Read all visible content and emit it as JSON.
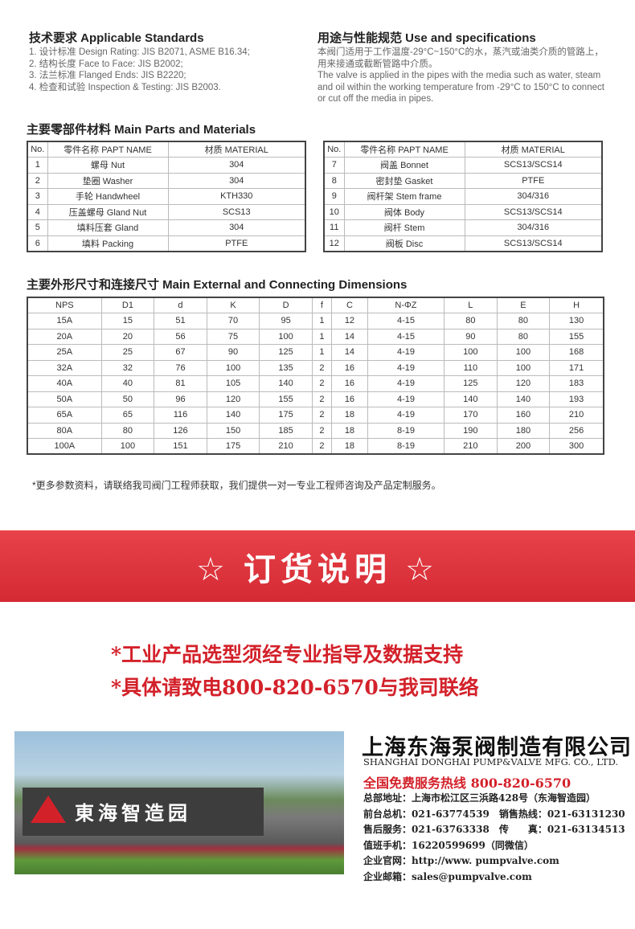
{
  "standards": {
    "title": "技术要求 Applicable Standards",
    "items": [
      "1. 设计标准 Design Rating: JIS B2071, ASME B16.34;",
      "2. 结构长度 Face to Face: JIS B2002;",
      "3. 法兰标准 Flanged Ends: JIS B2220;",
      "4. 检查和试验 Inspection & Testing: JIS B2003."
    ]
  },
  "use": {
    "title": "用途与性能规范 Use and specifications",
    "cn": "本阀门适用于工作温度-29°C~150°C的水，蒸汽或油类介质的管路上，用来接通或截断管路中介质。",
    "en": "The valve is applied in the pipes with the media such as water, steam and oil within the working temperature from -29°C to 150°C to connect or cut off the media in pipes."
  },
  "parts": {
    "title": "主要零部件材料 Main Parts and Materials",
    "headers": [
      "No.",
      "零件名称 PAPT NAME",
      "材质 MATERIAL"
    ],
    "left": [
      [
        "1",
        "螺母 Nut",
        "304"
      ],
      [
        "2",
        "垫圈 Washer",
        "304"
      ],
      [
        "3",
        "手轮 Handwheel",
        "KTH330"
      ],
      [
        "4",
        "压盖螺母 Gland Nut",
        "SCS13"
      ],
      [
        "5",
        "填料压套 Gland",
        "304"
      ],
      [
        "6",
        "填料 Packing",
        "PTFE"
      ]
    ],
    "right": [
      [
        "7",
        "阀盖 Bonnet",
        "SCS13/SCS14"
      ],
      [
        "8",
        "密封垫 Gasket",
        "PTFE"
      ],
      [
        "9",
        "阀杆架 Stem frame",
        "304/316"
      ],
      [
        "10",
        "阀体 Body",
        "SCS13/SCS14"
      ],
      [
        "11",
        "阀杆 Stem",
        "304/316"
      ],
      [
        "12",
        "阀板 Disc",
        "SCS13/SCS14"
      ]
    ]
  },
  "dims": {
    "title": "主要外形尺寸和连接尺寸 Main External and Connecting Dimensions",
    "headers": [
      "NPS",
      "D1",
      "d",
      "K",
      "D",
      "f",
      "C",
      "N-ΦZ",
      "L",
      "E",
      "H"
    ],
    "rows": [
      [
        "15A",
        "15",
        "51",
        "70",
        "95",
        "1",
        "12",
        "4-15",
        "80",
        "80",
        "130"
      ],
      [
        "20A",
        "20",
        "56",
        "75",
        "100",
        "1",
        "14",
        "4-15",
        "90",
        "80",
        "155"
      ],
      [
        "25A",
        "25",
        "67",
        "90",
        "125",
        "1",
        "14",
        "4-19",
        "100",
        "100",
        "168"
      ],
      [
        "32A",
        "32",
        "76",
        "100",
        "135",
        "2",
        "16",
        "4-19",
        "110",
        "100",
        "171"
      ],
      [
        "40A",
        "40",
        "81",
        "105",
        "140",
        "2",
        "16",
        "4-19",
        "125",
        "120",
        "183"
      ],
      [
        "50A",
        "50",
        "96",
        "120",
        "155",
        "2",
        "16",
        "4-19",
        "140",
        "140",
        "193"
      ],
      [
        "65A",
        "65",
        "116",
        "140",
        "175",
        "2",
        "18",
        "4-19",
        "170",
        "160",
        "210"
      ],
      [
        "80A",
        "80",
        "126",
        "150",
        "185",
        "2",
        "18",
        "8-19",
        "190",
        "180",
        "256"
      ],
      [
        "100A",
        "100",
        "151",
        "175",
        "210",
        "2",
        "18",
        "8-19",
        "210",
        "200",
        "300"
      ]
    ]
  },
  "note": "*更多参数资料，请联络我司阀门工程师获取，我们提供一对一专业工程师咨询及产品定制服务。",
  "banner": "☆ 订货说明 ☆",
  "order_lines": [
    "*工业产品选型须经专业指导及数据支持",
    "*具体请致电800-820-6570与我司联络"
  ],
  "photo_sign": "東海智造园",
  "company": {
    "name_cn": "上海东海泵阀制造有限公司",
    "name_en": "SHANGHAI DONGHAI PUMP&VALVE MFG. CO., LTD.",
    "hotline": "全国免费服务热线 800-820-6570",
    "lines": [
      "总部地址：上海市松江区三浜路428号（东海智造园）",
      "前台总机：021-63774539　销售热线：021-63131230",
      "售后服务：021-63763338　传　　真：021-63134513",
      "值班手机：16220599699（同微信）",
      "企业官网：http://www. pumpvalve.com",
      "企业邮箱：sales@pumpvalve.com"
    ]
  },
  "colors": {
    "red": "#d3212a"
  }
}
